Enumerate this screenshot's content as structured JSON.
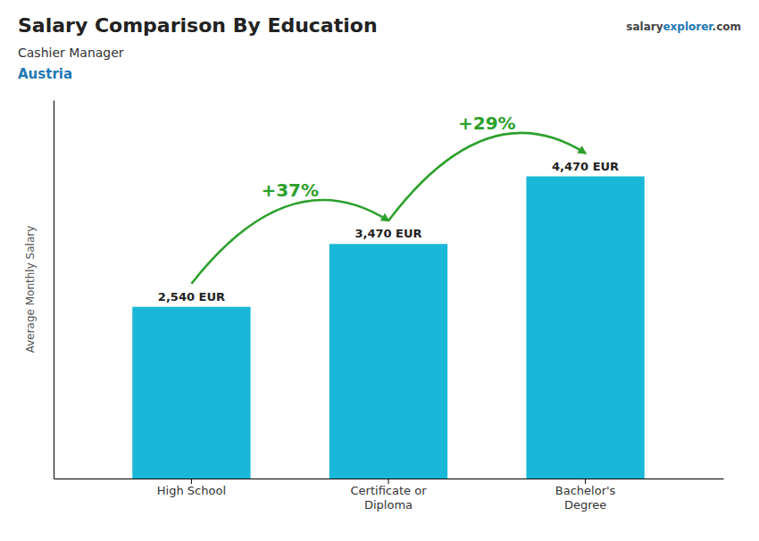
{
  "chart_data": {
    "type": "bar",
    "title": "Salary Comparison By Education",
    "subtitle": [
      "Cashier Manager",
      "Austria"
    ],
    "watermark": [
      "salary",
      "explorer",
      ".com"
    ],
    "ylabel": "Average Monthly Salary",
    "categories": [
      "High School",
      "Certificate or\nDiploma",
      "Bachelor's\nDegree"
    ],
    "values": [
      2540,
      3470,
      4470
    ],
    "value_labels": [
      "2,540 EUR",
      "3,470 EUR",
      "4,470 EUR"
    ],
    "data_labels": true,
    "annotations": [
      "+37%",
      "+29%"
    ],
    "color": "#1ab8d8",
    "ylim": [
      0,
      5600
    ],
    "yticks": [],
    "tick_labels": "x",
    "grid": false
  }
}
